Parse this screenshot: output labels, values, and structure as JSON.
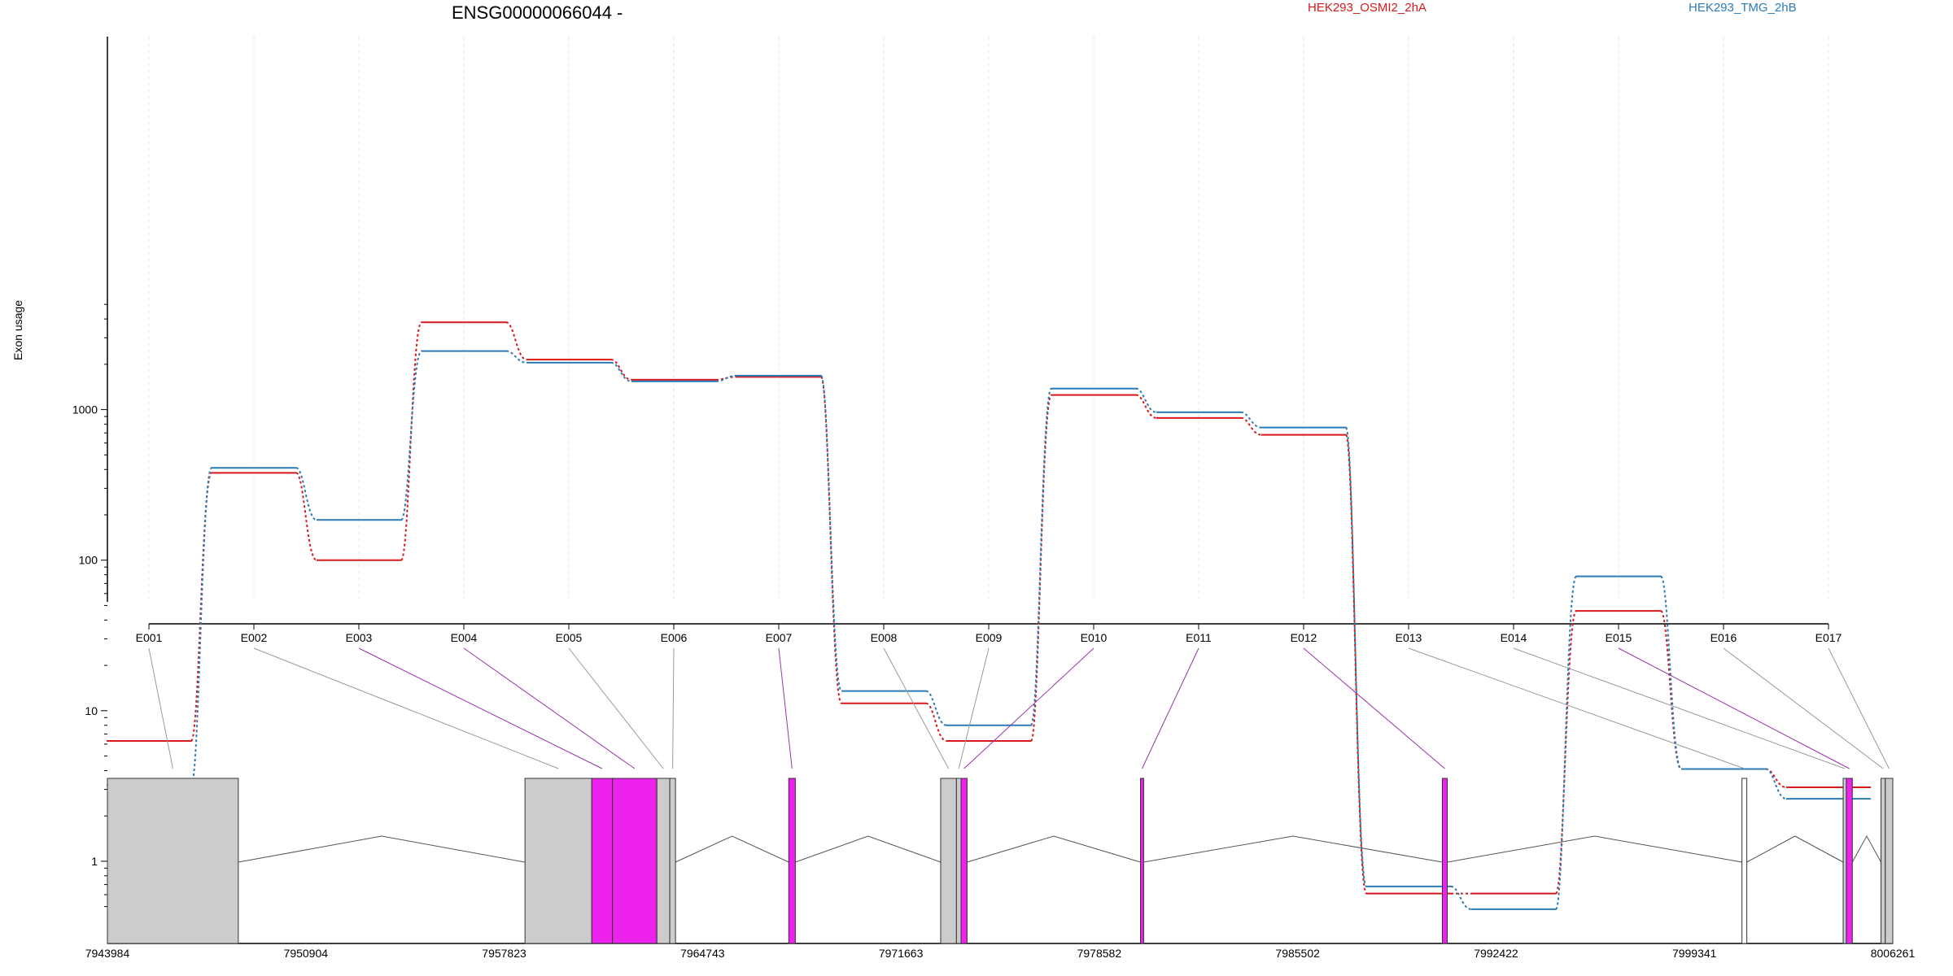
{
  "chart_data": {
    "type": "line",
    "title": "ENSG00000066044 -",
    "ylabel": "Exon usage",
    "yscale": "log",
    "ylim": [
      0.5,
      5500
    ],
    "yticks": [
      1,
      10,
      100,
      1000
    ],
    "ytick_labels": [
      "1",
      "10",
      "100",
      "1000"
    ],
    "grid": "vertical dashed at each exon",
    "legend_placement": "top",
    "categories": [
      "E001",
      "E002",
      "E003",
      "E004",
      "E005",
      "E006",
      "E007",
      "E008",
      "E009",
      "E010",
      "E011",
      "E012",
      "E013",
      "E014",
      "E015",
      "E016",
      "E017"
    ],
    "series": [
      {
        "name": "HEK293_OSMI2_2hA",
        "color": "#d7191c",
        "values": [
          6.3,
          380,
          100,
          3800,
          2150,
          1580,
          1650,
          11.2,
          6.3,
          1250,
          880,
          680,
          0.61,
          0.61,
          46,
          4.1,
          3.1
        ]
      },
      {
        "name": "HEK293_TMG_2hB",
        "color": "#2c7bb6",
        "values": [
          3.2,
          410,
          185,
          2450,
          2050,
          1540,
          1680,
          13.5,
          8.0,
          1380,
          960,
          760,
          0.68,
          0.48,
          78,
          4.1,
          2.6
        ]
      }
    ],
    "gene_model": {
      "coord_min": 7943984,
      "coord_max": 8006261,
      "coord_ticks": [
        7943984,
        7950904,
        7957823,
        7964743,
        7971663,
        7978582,
        7985502,
        7992422,
        7999341,
        8006261
      ],
      "coord_tick_labels": [
        "7943984",
        "7950904",
        "7957823",
        "7964743",
        "7971663",
        "7978582",
        "7985502",
        "7992422",
        "7999341",
        "8006261"
      ],
      "exons": [
        {
          "id": "E001",
          "start": 7943984,
          "end": 7948550,
          "highlight": false
        },
        {
          "id": "E002",
          "start": 7958550,
          "end": 7960880,
          "highlight": false
        },
        {
          "id": "E003",
          "start": 7960880,
          "end": 7961600,
          "highlight": true
        },
        {
          "id": "E004",
          "start": 7961600,
          "end": 7963150,
          "highlight": true
        },
        {
          "id": "E005",
          "start": 7963150,
          "end": 7963600,
          "highlight": false
        },
        {
          "id": "E006",
          "start": 7963600,
          "end": 7963800,
          "highlight": false
        },
        {
          "id": "E007",
          "start": 7967750,
          "end": 7967980,
          "highlight": true
        },
        {
          "id": "E008",
          "start": 7973050,
          "end": 7973600,
          "highlight": false
        },
        {
          "id": "E009",
          "start": 7973600,
          "end": 7973760,
          "highlight": false
        },
        {
          "id": "E010",
          "start": 7973760,
          "end": 7973970,
          "highlight": true
        },
        {
          "id": "E011",
          "start": 7980020,
          "end": 7980130,
          "highlight": true
        },
        {
          "id": "E012",
          "start": 7990550,
          "end": 7990720,
          "highlight": true
        },
        {
          "id": "E013",
          "start": 8001000,
          "end": 8001170,
          "highlight": false
        },
        {
          "id": "E014",
          "start": 8004530,
          "end": 8004640,
          "highlight": false
        },
        {
          "id": "E015",
          "start": 8004640,
          "end": 8004850,
          "highlight": true
        },
        {
          "id": "E016",
          "start": 8005850,
          "end": 8006000,
          "highlight": false
        },
        {
          "id": "E017",
          "start": 8006000,
          "end": 8006261,
          "highlight": false
        }
      ],
      "colors": {
        "exon_plain": "#cccccc",
        "exon_highlight": "#ee22ee",
        "connector_plain": "#999999",
        "connector_highlight": "#9933aa"
      }
    }
  }
}
